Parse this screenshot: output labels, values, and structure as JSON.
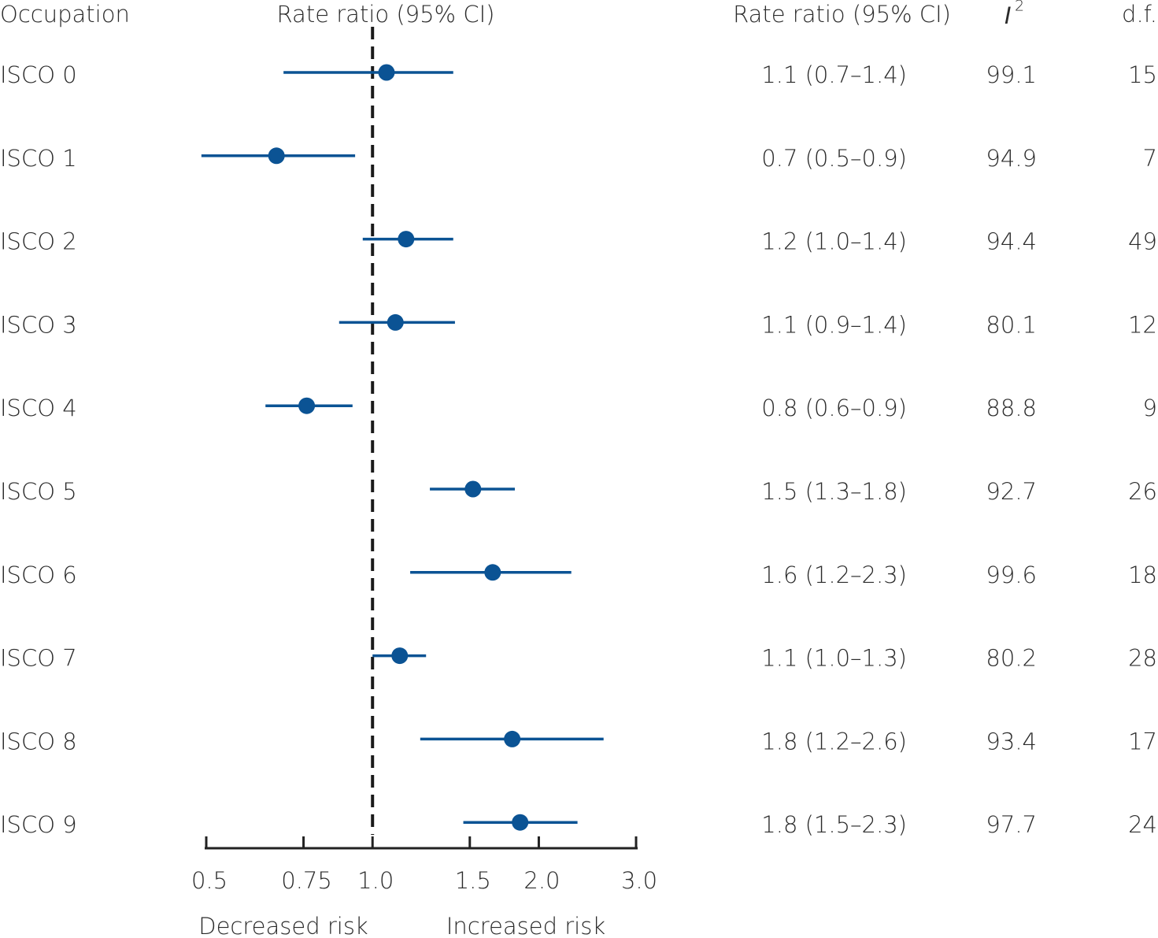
{
  "chart_data": {
    "type": "forest",
    "occupation_header": "Occupation",
    "x_label": "Rate ratio (95% CI)",
    "ci_header": "Rate ratio (95% CI)",
    "i2_header": {
      "base": "I",
      "sup": "2"
    },
    "df_header": "d.f.",
    "categories": [
      "ISCO 0",
      "ISCO 1",
      "ISCO 2",
      "ISCO 3",
      "ISCO 4",
      "ISCO 5",
      "ISCO 6",
      "ISCO 7",
      "ISCO 8",
      "ISCO 9"
    ],
    "values": [
      1.06,
      0.67,
      1.15,
      1.1,
      0.76,
      1.52,
      1.65,
      1.12,
      1.79,
      1.85
    ],
    "lower": [
      0.69,
      0.49,
      0.96,
      0.87,
      0.64,
      1.27,
      1.17,
      1.0,
      1.22,
      1.46
    ],
    "upper": [
      1.4,
      0.93,
      1.4,
      1.41,
      0.92,
      1.81,
      2.29,
      1.25,
      2.62,
      2.35
    ],
    "ci_text": [
      "1.1 (0.7–1.4)",
      "0.7 (0.5–0.9)",
      "1.2 (1.0–1.4)",
      "1.1 (0.9–1.4)",
      "0.8 (0.6–0.9)",
      "1.5 (1.3–1.8)",
      "1.6 (1.2–2.3)",
      "1.1 (1.0–1.3)",
      "1.8 (1.2–2.6)",
      "1.8 (1.5–2.3)"
    ],
    "i2": [
      99.1,
      94.9,
      94.4,
      80.1,
      88.8,
      92.7,
      99.6,
      80.2,
      93.4,
      97.7
    ],
    "df": [
      15,
      7,
      49,
      12,
      9,
      26,
      18,
      28,
      17,
      24
    ],
    "color": "#0b5394",
    "reference_line": 1,
    "log_x": true,
    "xlim": [
      0.5,
      3.0
    ],
    "xticks": [
      0.5,
      0.75,
      {
        "value": 1,
        "label": "1.0"
      },
      1.5,
      {
        "value": 2,
        "label": "2.0"
      },
      {
        "value": 3,
        "label": "3.0"
      }
    ],
    "annotations": [
      "Decreased risk",
      "Increased risk"
    ]
  }
}
